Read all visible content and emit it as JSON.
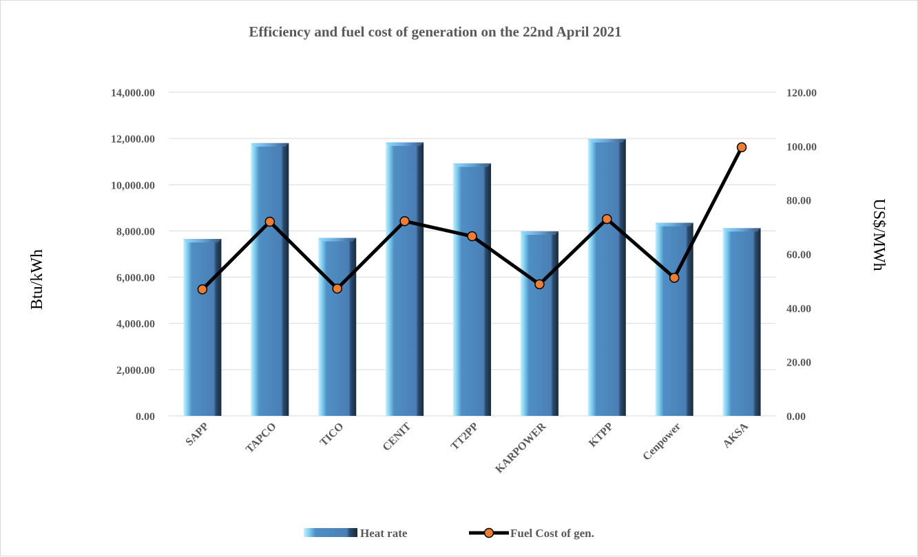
{
  "chart_data": {
    "type": "bar",
    "title": "Efficiency and fuel cost of generation on the 22nd April 2021",
    "categories": [
      "SAPP",
      "TAPCO",
      "TICO",
      "CENIT",
      "TT2PP",
      "KARPOWER",
      "KTPP",
      "Cenpower",
      "AKSA"
    ],
    "ylabel": "Btu/kWh",
    "y2label": "US$/MWh",
    "ylim": [
      0,
      14000
    ],
    "y2lim": [
      0,
      120
    ],
    "y_ticks": [
      "0.00",
      "2,000.00",
      "4,000.00",
      "6,000.00",
      "8,000.00",
      "10,000.00",
      "12,000.00",
      "14,000.00"
    ],
    "y2_ticks": [
      "0.00",
      "20.00",
      "40.00",
      "60.00",
      "80.00",
      "100.00",
      "120.00"
    ],
    "grid": true,
    "legend_position": "bottom",
    "series": [
      {
        "name": "Heat rate",
        "type": "bar",
        "axis": "left",
        "color": "#4f81bd",
        "values": [
          7650,
          11800,
          7700,
          11830,
          10920,
          7980,
          11980,
          8350,
          8120
        ]
      },
      {
        "name": "Fuel Cost of gen.",
        "type": "line",
        "axis": "right",
        "color": "#000000",
        "marker_color": "#ed7d31",
        "values": [
          46.9,
          72.0,
          47.2,
          72.2,
          66.6,
          48.8,
          73.0,
          51.2,
          99.6
        ]
      }
    ]
  }
}
